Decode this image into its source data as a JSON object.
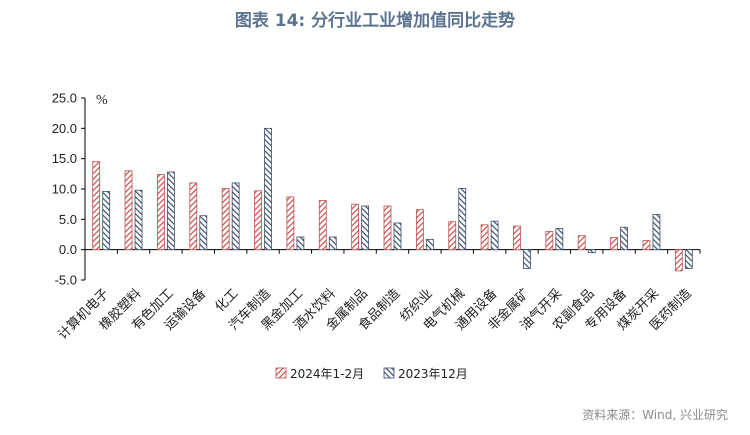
{
  "chart_data": {
    "type": "bar",
    "title": "图表 14: 分行业工业增加值同比走势",
    "unit": "%",
    "source": "资料来源：Wind, 兴业研究",
    "ylim": [
      -5,
      25
    ],
    "yticks": [
      "25.0",
      "20.0",
      "15.0",
      "10.0",
      "5.0",
      "0.0",
      "-5.0"
    ],
    "categories": [
      "计算机电子",
      "橡胶塑料",
      "有色加工",
      "运输设备",
      "化工",
      "汽车制造",
      "黑金加工",
      "酒水饮料",
      "金属制品",
      "食品制造",
      "纺织业",
      "电气机械",
      "通用设备",
      "非金属矿",
      "油气开采",
      "农副食品",
      "专用设备",
      "煤炭开采",
      "医药制造"
    ],
    "series": [
      {
        "name": "2024年1-2月",
        "color": "#c0504d",
        "values": [
          14.5,
          13.0,
          12.4,
          11.0,
          10.1,
          9.7,
          8.7,
          8.1,
          7.5,
          7.2,
          6.6,
          4.6,
          4.1,
          3.9,
          3.0,
          2.3,
          2.0,
          1.5,
          -3.5
        ]
      },
      {
        "name": "2023年12月",
        "color": "#3d4f6e",
        "values": [
          9.6,
          9.8,
          12.8,
          5.6,
          11.0,
          20.0,
          2.1,
          2.1,
          7.2,
          4.4,
          1.7,
          10.1,
          4.7,
          -3.1,
          3.5,
          -0.5,
          3.7,
          5.8,
          -3.1
        ]
      }
    ],
    "legend_position": "bottom"
  }
}
